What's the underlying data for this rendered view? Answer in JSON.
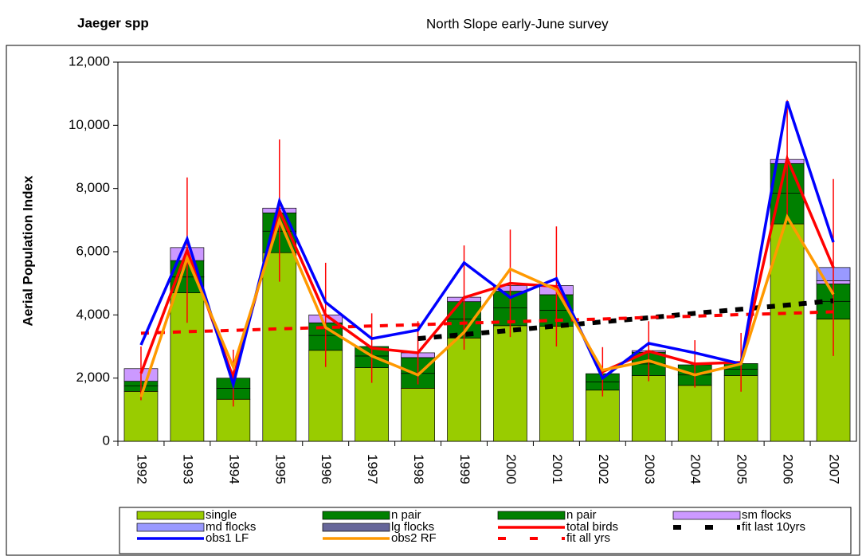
{
  "chart_data": {
    "type": "bar",
    "title": "Jaeger spp",
    "subtitle": "North Slope early-June survey",
    "y_label": "Aerial Population Index",
    "categories": [
      "1992",
      "1993",
      "1994",
      "1995",
      "1996",
      "1997",
      "1998",
      "1999",
      "2000",
      "2001",
      "2002",
      "2003",
      "2004",
      "2005",
      "2006",
      "2007"
    ],
    "ylim": [
      0,
      12000
    ],
    "yticks": [
      0,
      {
        "value": 2000,
        "label": "2,000"
      },
      {
        "value": 4000,
        "label": "4,000"
      },
      {
        "value": 6000,
        "label": "6,000"
      },
      {
        "value": 8000,
        "label": "8,000"
      },
      {
        "value": 10000,
        "label": "10,000"
      },
      {
        "value": 12000,
        "label": "12,000"
      }
    ],
    "series": [
      {
        "name": "single",
        "type": "bar",
        "color": "#99cc00",
        "values": [
          1580,
          4700,
          1330,
          5970,
          2880,
          2330,
          1680,
          3270,
          3660,
          3640,
          1620,
          2080,
          1770,
          2080,
          6880,
          3870
        ]
      },
      {
        "name": "n pair",
        "type": "bar",
        "color": "#008000",
        "values": [
          170,
          500,
          350,
          680,
          470,
          370,
          470,
          600,
          560,
          510,
          260,
          370,
          330,
          200,
          970,
          560
        ]
      },
      {
        "name": "n pair",
        "type": "bar",
        "color": "#008000",
        "values": [
          150,
          520,
          320,
          580,
          400,
          300,
          500,
          550,
          530,
          490,
          260,
          370,
          320,
          180,
          940,
          550
        ]
      },
      {
        "name": "sm flocks",
        "type": "bar",
        "color": "#cc99ff",
        "values": [
          400,
          410,
          0,
          150,
          250,
          0,
          150,
          140,
          180,
          290,
          0,
          50,
          0,
          0,
          130,
          100
        ]
      },
      {
        "name": "md flocks",
        "type": "bar",
        "color": "#9999ff",
        "values": [
          0,
          0,
          0,
          0,
          0,
          0,
          0,
          0,
          0,
          0,
          0,
          0,
          0,
          0,
          0,
          420
        ]
      },
      {
        "name": "lg flocks",
        "type": "bar",
        "color": "#666699",
        "values": [
          0,
          0,
          0,
          0,
          0,
          0,
          0,
          0,
          0,
          0,
          0,
          0,
          0,
          0,
          0,
          0
        ]
      },
      {
        "name": "total birds",
        "type": "line",
        "color": "#ff0000",
        "values": [
          2150,
          6050,
          2000,
          7300,
          4000,
          2950,
          2800,
          4550,
          5000,
          4900,
          2200,
          2850,
          2450,
          2500,
          8950,
          5500
        ],
        "errors": [
          850,
          2300,
          900,
          2250,
          1650,
          1100,
          1000,
          1650,
          1700,
          1900,
          780,
          950,
          750,
          930,
          1850,
          2800
        ]
      },
      {
        "name": "fit last 10yrs",
        "type": "line",
        "color": "#000000",
        "dashed": true,
        "width": 6,
        "values": [
          null,
          null,
          null,
          null,
          null,
          null,
          3250,
          3380,
          3510,
          3650,
          3780,
          3910,
          4050,
          4180,
          4310,
          4450
        ]
      },
      {
        "name": "obs1 LF",
        "type": "line",
        "color": "#0000ff",
        "values": [
          3050,
          6400,
          1800,
          7600,
          4400,
          3250,
          3520,
          5650,
          4550,
          5150,
          2000,
          3100,
          2800,
          2450,
          10750,
          6300
        ]
      },
      {
        "name": "obs2 RF",
        "type": "line",
        "color": "#ff9900",
        "values": [
          1400,
          5800,
          2350,
          7000,
          3600,
          2700,
          2100,
          3450,
          5450,
          4800,
          2250,
          2550,
          2100,
          2450,
          7100,
          4650
        ]
      },
      {
        "name": "fit all yrs",
        "type": "line",
        "color": "#ff0000",
        "dashed": true,
        "width": 4,
        "values": [
          3420,
          3470,
          3510,
          3560,
          3600,
          3650,
          3690,
          3740,
          3780,
          3830,
          3870,
          3920,
          3960,
          4010,
          4050,
          4100
        ]
      }
    ]
  }
}
